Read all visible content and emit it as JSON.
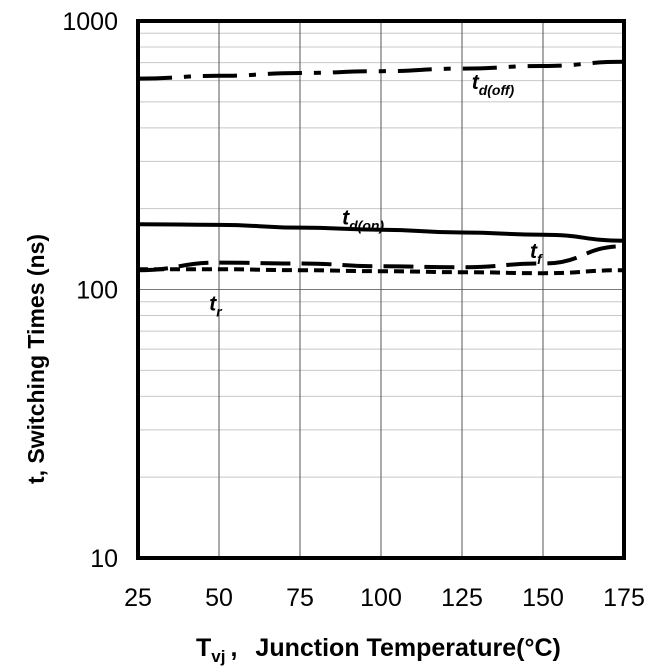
{
  "chart_data": {
    "type": "line",
    "yscale": "log",
    "xlim": [
      25,
      175
    ],
    "ylim": [
      10,
      1000
    ],
    "grid": true,
    "x_ticks": [
      25,
      50,
      75,
      100,
      125,
      150,
      175
    ],
    "x_tick_labels": [
      "25",
      "50",
      "75",
      "100",
      "125",
      "150",
      "175"
    ],
    "y_ticks": [
      10,
      100,
      1000
    ],
    "y_tick_labels": [
      "10",
      "100",
      "1000"
    ],
    "ylabel": "t, Switching Times (ns)",
    "xlabel": {
      "symbol": "T",
      "subscript": "vj",
      "separator": ",",
      "text": "Junction Temperature(°C)"
    },
    "series": [
      {
        "name": "t_d(off)",
        "label_main": "t",
        "label_sub": "d(off)",
        "dash": "dash-dot",
        "x": [
          25,
          50,
          75,
          100,
          125,
          150,
          175
        ],
        "y": [
          610,
          625,
          640,
          650,
          665,
          680,
          705
        ]
      },
      {
        "name": "t_d(on)",
        "label_main": "t",
        "label_sub": "d(on)",
        "dash": "solid",
        "x": [
          25,
          50,
          75,
          100,
          125,
          150,
          175
        ],
        "y": [
          175,
          174,
          170,
          167,
          163,
          160,
          152
        ]
      },
      {
        "name": "t_f",
        "label_main": "t",
        "label_sub": "f",
        "dash": "long-dash",
        "x": [
          25,
          50,
          75,
          100,
          125,
          150,
          175
        ],
        "y": [
          118,
          126,
          125,
          122,
          121,
          125,
          145
        ]
      },
      {
        "name": "t_r",
        "label_main": "t",
        "label_sub": "r",
        "dash": "short-dash",
        "x": [
          25,
          50,
          75,
          100,
          125,
          150,
          175
        ],
        "y": [
          119,
          119,
          118,
          117,
          116,
          115,
          118
        ]
      }
    ]
  }
}
